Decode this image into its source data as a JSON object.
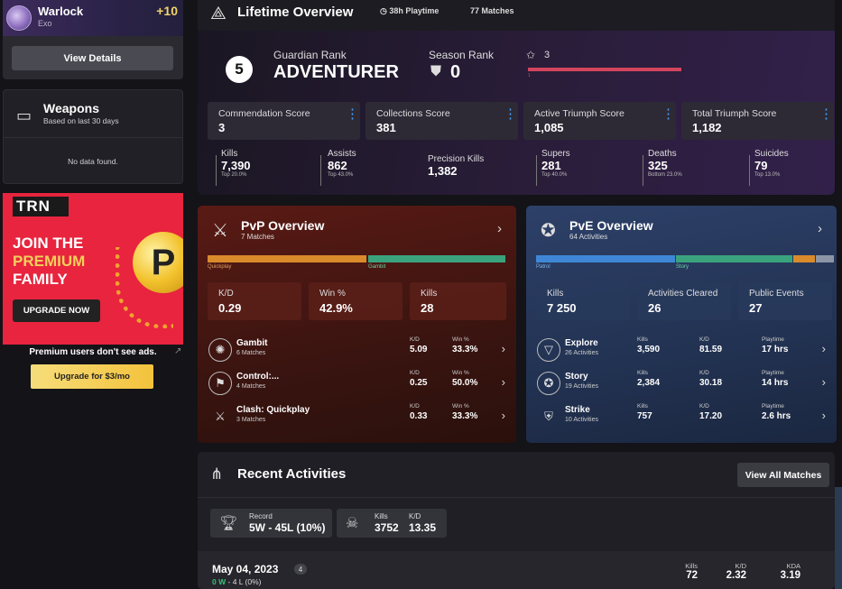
{
  "character": {
    "name": "Warlock",
    "race": "Exo",
    "power": "+10",
    "details_button": "View Details"
  },
  "weapons": {
    "title": "Weapons",
    "subtitle": "Based on last 30 days",
    "empty": "No data found."
  },
  "ad": {
    "brand": "TRN",
    "line1": "JOIN THE",
    "line2": "PREMIUM",
    "line3": "FAMILY",
    "cta": "UPGRADE NOW",
    "coin_letter": "P",
    "note": "Premium users don't see ads.",
    "upgrade_button": "Upgrade for $3/mo",
    "colors": {
      "background": "#e8243e",
      "gold": "#f4d05a"
    }
  },
  "lifetime": {
    "title": "Lifetime Overview",
    "playtime": "38h Playtime",
    "matches": "77 Matches",
    "guardian_rank_label": "Guardian Rank",
    "guardian_rank_number": "5",
    "guardian_rank_value": "ADVENTURER",
    "season_rank_label": "Season Rank",
    "season_rank_value": "0",
    "stars_value": "3",
    "stars_bar_label": "1",
    "scores": [
      {
        "label": "Commendation Score",
        "value": "3"
      },
      {
        "label": "Collections Score",
        "value": "381"
      },
      {
        "label": "Active Triumph Score",
        "value": "1,085"
      },
      {
        "label": "Total Triumph Score",
        "value": "1,182"
      }
    ],
    "stats": [
      {
        "label": "Kills",
        "value": "7,390",
        "sub": "Top 20.0%"
      },
      {
        "label": "Assists",
        "value": "862",
        "sub": "Top 43.0%"
      },
      {
        "label": "Precision Kills",
        "value": "1,382",
        "sub": ""
      },
      {
        "label": "Supers",
        "value": "281",
        "sub": "Top 40.0%"
      },
      {
        "label": "Deaths",
        "value": "325",
        "sub": "Bottom 23.0%"
      },
      {
        "label": "Suicides",
        "value": "79",
        "sub": "Top 13.0%"
      }
    ]
  },
  "pvp": {
    "title": "PvP Overview",
    "subtitle": "7 Matches",
    "bar": [
      {
        "label": "Quickplay",
        "color": "#d98a2b",
        "share": 0.5
      },
      {
        "label": "Gambit",
        "color": "#3aa37e",
        "share": 0.46
      }
    ],
    "boxes": [
      {
        "label": "K/D",
        "value": "0.29"
      },
      {
        "label": "Win %",
        "value": "42.9%"
      },
      {
        "label": "Kills",
        "value": "28"
      }
    ],
    "modes": [
      {
        "name": "Gambit",
        "sub": "6 Matches",
        "c1l": "K/D",
        "c1v": "5.09",
        "c2l": "Win %",
        "c2v": "33.3%",
        "icon": "gambit-icon"
      },
      {
        "name": "Control:...",
        "sub": "4 Matches",
        "c1l": "K/D",
        "c1v": "0.25",
        "c2l": "Win %",
        "c2v": "50.0%",
        "icon": "control-icon"
      },
      {
        "name": "Clash: Quickplay",
        "sub": "3 Matches",
        "c1l": "K/D",
        "c1v": "0.33",
        "c2l": "Win %",
        "c2v": "33.3%",
        "icon": "clash-icon"
      }
    ]
  },
  "pve": {
    "title": "PvE Overview",
    "subtitle": "64 Activities",
    "bar": [
      {
        "label": "Patrol",
        "color": "#3f87d6",
        "share": 0.5
      },
      {
        "label": "Story",
        "color": "#3aa37e",
        "share": 0.4
      },
      {
        "label": "",
        "color": "#d98a2b",
        "share": 0.08
      },
      {
        "label": "",
        "color": "#8c95a5",
        "share": 0.02
      }
    ],
    "boxes": [
      {
        "label": "Kills",
        "value": "7 250"
      },
      {
        "label": "Activities Cleared",
        "value": "26"
      },
      {
        "label": "Public Events",
        "value": "27"
      }
    ],
    "modes": [
      {
        "name": "Explore",
        "sub": "26 Activities",
        "c1l": "Kills",
        "c1v": "3,590",
        "c2l": "K/D",
        "c2v": "81.59",
        "c3l": "Playtime",
        "c3v": "17 hrs",
        "icon": "explore-icon"
      },
      {
        "name": "Story",
        "sub": "19 Activities",
        "c1l": "Kills",
        "c1v": "2,384",
        "c2l": "K/D",
        "c2v": "30.18",
        "c3l": "Playtime",
        "c3v": "14 hrs",
        "icon": "story-icon"
      },
      {
        "name": "Strike",
        "sub": "10 Activities",
        "c1l": "Kills",
        "c1v": "757",
        "c2l": "K/D",
        "c2v": "17.20",
        "c3l": "Playtime",
        "c3v": "2.6 hrs",
        "icon": "strike-icon"
      }
    ]
  },
  "recent": {
    "title": "Recent Activities",
    "view_all": "View All Matches",
    "record_label": "Record",
    "record_value": "5W - 45L (10%)",
    "kills_label": "Kills",
    "kills_value": "3752",
    "kd_label": "K/D",
    "kd_value": "13.35",
    "day": {
      "date": "May 04, 2023",
      "count": "4",
      "wins": "0 W",
      "losses": "- 4 L (0%)",
      "kills_label": "Kills",
      "kills": "72",
      "kd_label": "K/D",
      "kd": "2.32",
      "kda_label": "KDA",
      "kda": "3.19"
    }
  }
}
